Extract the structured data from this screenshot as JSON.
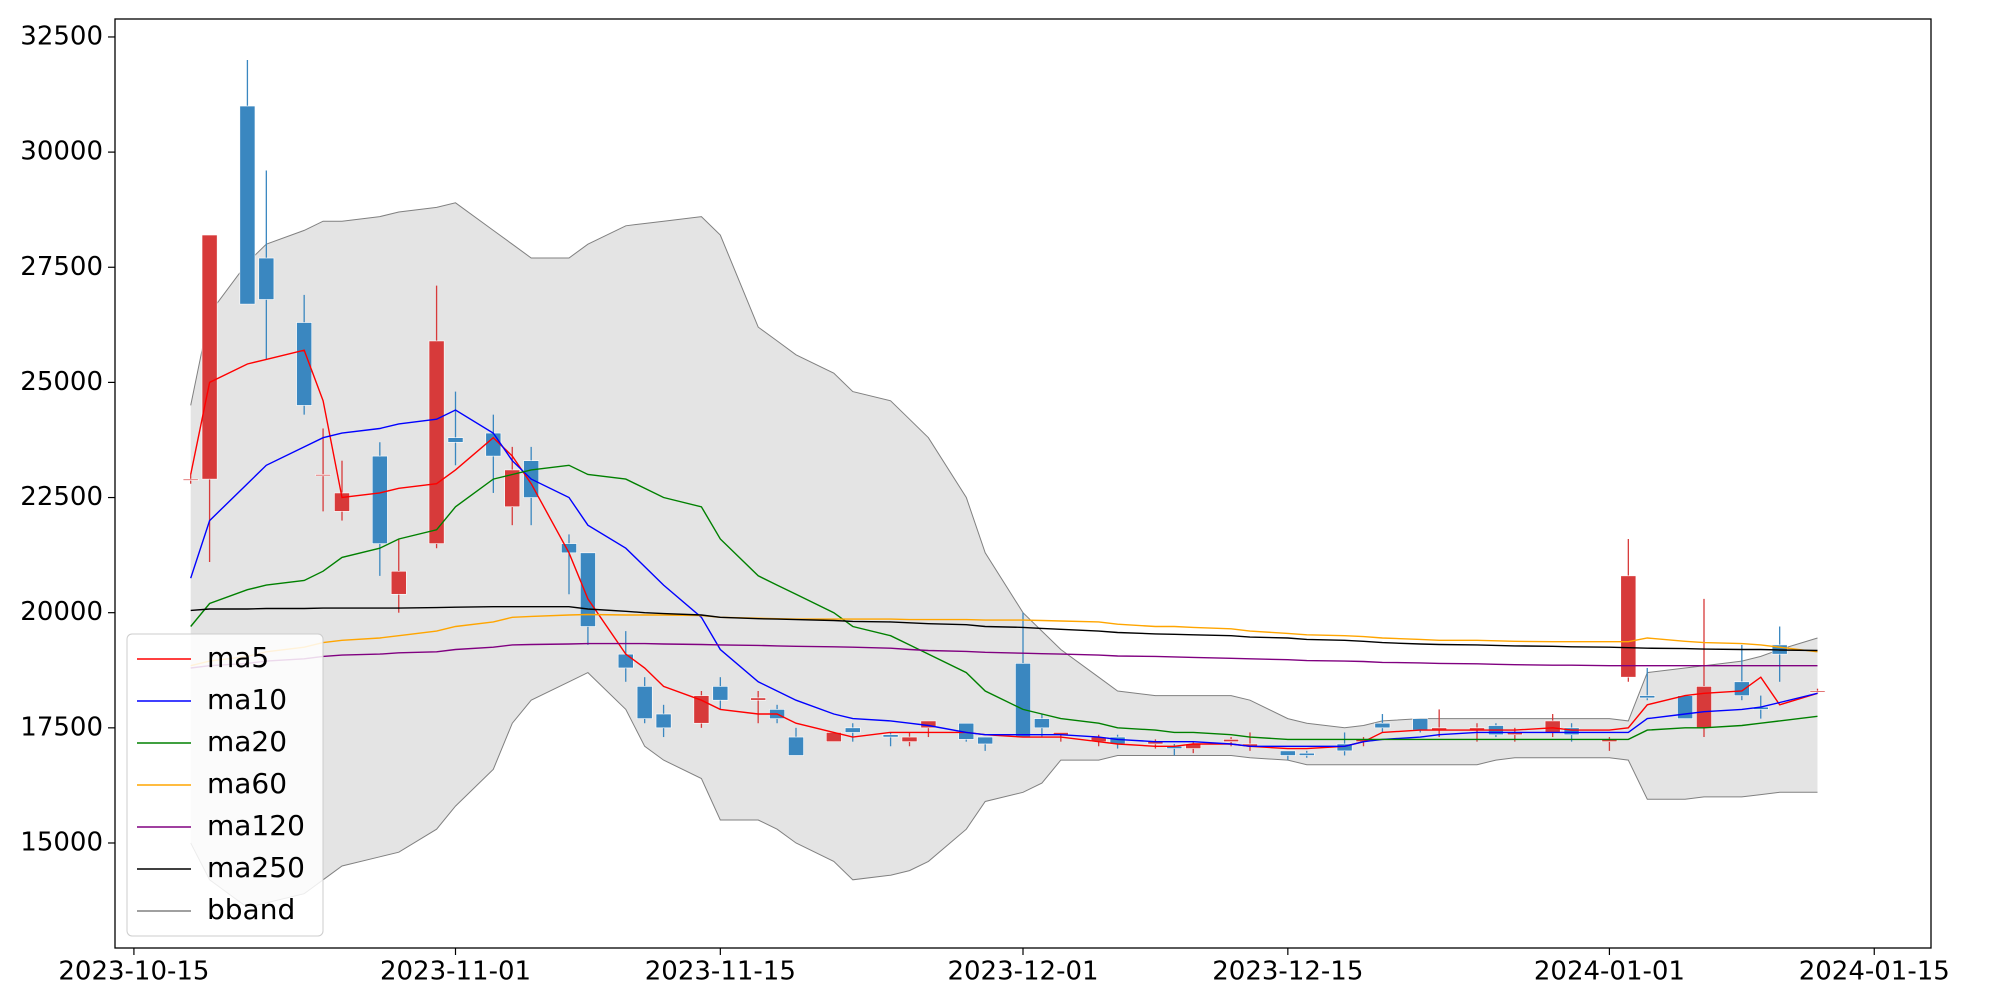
{
  "chart_data": {
    "type": "candlestick",
    "x": [
      "2023-10-18",
      "2023-10-19",
      "2023-10-21",
      "2023-10-22",
      "2023-10-24",
      "2023-10-25",
      "2023-10-26",
      "2023-10-28",
      "2023-10-29",
      "2023-10-31",
      "2023-11-01",
      "2023-11-03",
      "2023-11-04",
      "2023-11-05",
      "2023-11-07",
      "2023-11-08",
      "2023-11-10",
      "2023-11-11",
      "2023-11-12",
      "2023-11-14",
      "2023-11-15",
      "2023-11-17",
      "2023-11-18",
      "2023-11-19",
      "2023-11-21",
      "2023-11-22",
      "2023-11-24",
      "2023-11-25",
      "2023-11-26",
      "2023-11-28",
      "2023-11-29",
      "2023-12-01",
      "2023-12-02",
      "2023-12-03",
      "2023-12-05",
      "2023-12-06",
      "2023-12-08",
      "2023-12-09",
      "2023-12-10",
      "2023-12-12",
      "2023-12-13",
      "2023-12-15",
      "2023-12-16",
      "2023-12-18",
      "2023-12-19",
      "2023-12-20",
      "2023-12-22",
      "2023-12-23",
      "2023-12-25",
      "2023-12-26",
      "2023-12-27",
      "2023-12-29",
      "2023-12-30",
      "2024-01-01",
      "2024-01-02",
      "2024-01-03",
      "2024-01-05",
      "2024-01-06",
      "2024-01-08",
      "2024-01-09",
      "2024-01-10",
      "2024-01-12"
    ],
    "open": [
      22900,
      22900,
      31000,
      27700,
      26300,
      23000,
      22200,
      23400,
      20400,
      21500,
      23800,
      23900,
      22300,
      23300,
      21500,
      21300,
      19100,
      18400,
      17800,
      17600,
      18400,
      18100,
      17900,
      17300,
      17200,
      17500,
      17350,
      17200,
      17500,
      17600,
      17300,
      18900,
      17700,
      17350,
      17200,
      17300,
      17150,
      17100,
      17050,
      17200,
      17100,
      17000,
      16950,
      17150,
      17200,
      17600,
      17700,
      17450,
      17450,
      17550,
      17350,
      17400,
      17500,
      17200,
      18600,
      18200,
      18200,
      17500,
      18500,
      17950,
      19300,
      18300
    ],
    "high": [
      23000,
      28200,
      32000,
      29600,
      26900,
      24000,
      23300,
      23700,
      21600,
      27100,
      24800,
      24300,
      23600,
      23600,
      21700,
      21300,
      19600,
      18600,
      18000,
      18300,
      18600,
      18300,
      18000,
      17500,
      17400,
      17600,
      17400,
      17400,
      17650,
      17600,
      17300,
      20000,
      17800,
      17400,
      17350,
      17350,
      17250,
      17150,
      17200,
      17300,
      17400,
      17000,
      17000,
      17400,
      17300,
      17800,
      17700,
      17900,
      17600,
      17600,
      17500,
      17800,
      17600,
      17300,
      21600,
      18800,
      18200,
      20300,
      19300,
      18200,
      19700,
      18350
    ],
    "low": [
      22800,
      21100,
      26700,
      25500,
      24300,
      22200,
      22000,
      20800,
      20000,
      21400,
      23200,
      22600,
      21900,
      21900,
      20400,
      19300,
      18500,
      17600,
      17300,
      17500,
      17900,
      17600,
      17600,
      16900,
      17200,
      17200,
      17100,
      17100,
      17300,
      17200,
      17000,
      17300,
      17300,
      17200,
      17100,
      17050,
      17050,
      16900,
      16950,
      17100,
      17000,
      16800,
      16850,
      16900,
      17100,
      17400,
      17400,
      17300,
      17200,
      17300,
      17200,
      17300,
      17200,
      17000,
      18500,
      18100,
      17700,
      17300,
      18100,
      17700,
      18500,
      18250
    ],
    "close": [
      22900,
      28200,
      26700,
      26800,
      24500,
      23000,
      22600,
      21500,
      20900,
      25900,
      23700,
      23400,
      23100,
      22500,
      21300,
      19700,
      18800,
      17700,
      17500,
      18200,
      18100,
      18150,
      17700,
      16900,
      17400,
      17400,
      17300,
      17300,
      17650,
      17250,
      17150,
      17300,
      17500,
      17400,
      17300,
      17150,
      17200,
      17050,
      17150,
      17250,
      17150,
      16900,
      16900,
      17000,
      17250,
      17500,
      17450,
      17500,
      17500,
      17350,
      17400,
      17650,
      17350,
      17250,
      20800,
      18150,
      17700,
      18400,
      18200,
      17900,
      19100,
      18300
    ],
    "up_color": "#d73a3a",
    "down_color": "#3a87c0",
    "lines": [
      {
        "name": "ma5",
        "color": "#ff0000",
        "values": [
          23000,
          25000,
          25400,
          25500,
          25700,
          24600,
          22500,
          22600,
          22700,
          22800,
          23100,
          23800,
          23400,
          22800,
          21300,
          20300,
          19100,
          18800,
          18400,
          18100,
          17900,
          17800,
          17800,
          17600,
          17400,
          17300,
          17400,
          17400,
          17400,
          17400,
          17350,
          17300,
          17300,
          17300,
          17200,
          17150,
          17100,
          17100,
          17150,
          17150,
          17100,
          17050,
          17050,
          17100,
          17200,
          17400,
          17450,
          17450,
          17450,
          17450,
          17450,
          17500,
          17450,
          17450,
          17500,
          18000,
          18200,
          18250,
          18300,
          18600,
          18000,
          18250
        ]
      },
      {
        "name": "ma10",
        "color": "#0000ff",
        "values": [
          20750,
          22000,
          22800,
          23200,
          23600,
          23800,
          23900,
          24000,
          24100,
          24200,
          24400,
          23900,
          23300,
          22900,
          22500,
          21900,
          21400,
          21000,
          20600,
          19900,
          19200,
          18500,
          18300,
          18100,
          17800,
          17700,
          17650,
          17600,
          17550,
          17400,
          17350,
          17350,
          17350,
          17350,
          17300,
          17250,
          17200,
          17200,
          17200,
          17150,
          17100,
          17100,
          17100,
          17100,
          17200,
          17250,
          17300,
          17350,
          17400,
          17400,
          17400,
          17400,
          17400,
          17400,
          17400,
          17700,
          17800,
          17850,
          17900,
          17950,
          18050,
          18250
        ]
      },
      {
        "name": "ma20",
        "color": "#008000",
        "values": [
          19700,
          20200,
          20500,
          20600,
          20700,
          20900,
          21200,
          21400,
          21600,
          21800,
          22300,
          22900,
          23000,
          23100,
          23200,
          23000,
          22900,
          22700,
          22500,
          22300,
          21600,
          20800,
          20600,
          20400,
          20000,
          19700,
          19500,
          19300,
          19100,
          18700,
          18300,
          17900,
          17800,
          17700,
          17600,
          17500,
          17450,
          17400,
          17400,
          17350,
          17300,
          17250,
          17250,
          17250,
          17250,
          17250,
          17250,
          17250,
          17250,
          17250,
          17250,
          17250,
          17250,
          17250,
          17250,
          17450,
          17500,
          17500,
          17550,
          17600,
          17650,
          17750
        ]
      },
      {
        "name": "ma60",
        "color": "#ffa500",
        "values": [
          18850,
          18950,
          19050,
          19150,
          19250,
          19350,
          19400,
          19450,
          19500,
          19600,
          19700,
          19800,
          19900,
          19920,
          19950,
          19960,
          19950,
          19950,
          19950,
          19940,
          19900,
          19880,
          19870,
          19860,
          19860,
          19860,
          19860,
          19850,
          19850,
          19850,
          19840,
          19840,
          19830,
          19820,
          19800,
          19750,
          19700,
          19700,
          19680,
          19650,
          19600,
          19550,
          19520,
          19500,
          19480,
          19450,
          19420,
          19400,
          19400,
          19390,
          19380,
          19370,
          19370,
          19370,
          19370,
          19450,
          19380,
          19350,
          19330,
          19300,
          19250,
          19150
        ]
      },
      {
        "name": "ma120",
        "color": "#800080",
        "values": [
          18800,
          18850,
          18900,
          18950,
          19000,
          19050,
          19080,
          19100,
          19130,
          19150,
          19200,
          19250,
          19300,
          19310,
          19320,
          19330,
          19330,
          19330,
          19320,
          19310,
          19300,
          19290,
          19280,
          19270,
          19260,
          19250,
          19230,
          19200,
          19180,
          19160,
          19140,
          19120,
          19110,
          19100,
          19080,
          19060,
          19050,
          19040,
          19030,
          19010,
          19000,
          18980,
          18960,
          18950,
          18940,
          18920,
          18910,
          18900,
          18890,
          18880,
          18870,
          18860,
          18860,
          18850,
          18850,
          18850,
          18850,
          18850,
          18850,
          18850,
          18850,
          18850
        ]
      },
      {
        "name": "ma250",
        "color": "#000000",
        "values": [
          20050,
          20080,
          20080,
          20090,
          20090,
          20100,
          20100,
          20100,
          20100,
          20110,
          20120,
          20130,
          20130,
          20130,
          20130,
          20080,
          20030,
          20000,
          19980,
          19950,
          19900,
          19870,
          19860,
          19850,
          19830,
          19810,
          19800,
          19780,
          19760,
          19740,
          19700,
          19680,
          19660,
          19640,
          19600,
          19570,
          19540,
          19530,
          19520,
          19500,
          19470,
          19450,
          19420,
          19400,
          19380,
          19350,
          19320,
          19310,
          19300,
          19290,
          19280,
          19270,
          19260,
          19250,
          19240,
          19230,
          19220,
          19210,
          19200,
          19200,
          19190,
          19180
        ]
      }
    ],
    "band": {
      "name": "bband",
      "color": "#808080",
      "fill": "#e4e4e4",
      "upper": [
        24500,
        26500,
        27600,
        28000,
        28300,
        28500,
        28500,
        28600,
        28700,
        28800,
        28900,
        28300,
        28000,
        27700,
        27700,
        28000,
        28400,
        28450,
        28500,
        28600,
        28200,
        26200,
        25900,
        25600,
        25200,
        24800,
        24600,
        24200,
        23800,
        22500,
        21300,
        20000,
        19600,
        19200,
        18600,
        18300,
        18200,
        18200,
        18200,
        18200,
        18100,
        17700,
        17600,
        17500,
        17550,
        17650,
        17700,
        17700,
        17700,
        17700,
        17700,
        17700,
        17700,
        17700,
        17650,
        18700,
        18800,
        18850,
        18950,
        19050,
        19200,
        19450
      ],
      "lower": [
        15000,
        14200,
        13600,
        13700,
        13900,
        14200,
        14500,
        14700,
        14800,
        15300,
        15800,
        16600,
        17600,
        18100,
        18500,
        18700,
        17900,
        17100,
        16800,
        16400,
        15500,
        15500,
        15300,
        15000,
        14600,
        14200,
        14300,
        14400,
        14600,
        15300,
        15900,
        16100,
        16300,
        16800,
        16800,
        16900,
        16900,
        16900,
        16900,
        16900,
        16850,
        16800,
        16700,
        16700,
        16700,
        16700,
        16700,
        16700,
        16700,
        16800,
        16850,
        16850,
        16850,
        16850,
        16800,
        15950,
        15950,
        16000,
        16000,
        16050,
        16100,
        16100
      ]
    },
    "xlim": [
      "2023-10-14",
      "2024-01-18"
    ],
    "xticks": [
      "2023-10-15",
      "2023-11-01",
      "2023-11-15",
      "2023-12-01",
      "2023-12-15",
      "2024-01-01",
      "2024-01-15"
    ],
    "ylim": [
      12720,
      32890
    ],
    "yticks": [
      15000,
      17500,
      20000,
      22500,
      25000,
      27500,
      30000,
      32500
    ],
    "legend": "lower left"
  }
}
